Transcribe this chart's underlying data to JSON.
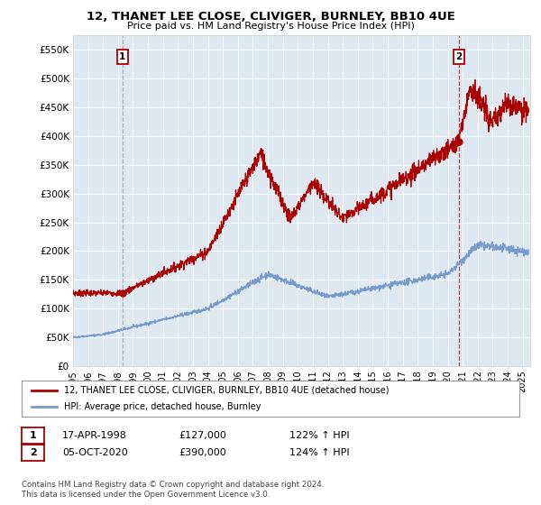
{
  "title": "12, THANET LEE CLOSE, CLIVIGER, BURNLEY, BB10 4UE",
  "subtitle": "Price paid vs. HM Land Registry's House Price Index (HPI)",
  "hpi_label": "HPI: Average price, detached house, Burnley",
  "property_label": "12, THANET LEE CLOSE, CLIVIGER, BURNLEY, BB10 4UE (detached house)",
  "annotation1_date": "17-APR-1998",
  "annotation1_price": "£127,000",
  "annotation1_hpi": "122% ↑ HPI",
  "annotation1_year": 1998.3,
  "annotation1_value": 127000,
  "annotation2_date": "05-OCT-2020",
  "annotation2_price": "£390,000",
  "annotation2_hpi": "124% ↑ HPI",
  "annotation2_year": 2020.75,
  "annotation2_value": 390000,
  "property_color": "#aa0000",
  "hpi_color": "#7799cc",
  "background_color": "#ffffff",
  "plot_bg_color": "#dde8f0",
  "grid_color": "#ffffff",
  "vline1_color": "#aaaaaa",
  "vline2_color": "#cc2222",
  "ylim": [
    0,
    575000
  ],
  "yticks": [
    0,
    50000,
    100000,
    150000,
    200000,
    250000,
    300000,
    350000,
    400000,
    450000,
    500000,
    550000
  ],
  "ytick_labels": [
    "£0",
    "£50K",
    "£100K",
    "£150K",
    "£200K",
    "£250K",
    "£300K",
    "£350K",
    "£400K",
    "£450K",
    "£500K",
    "£550K"
  ],
  "xlim_start": 1995.0,
  "xlim_end": 2025.5,
  "footer_text": "Contains HM Land Registry data © Crown copyright and database right 2024.\nThis data is licensed under the Open Government Licence v3.0."
}
